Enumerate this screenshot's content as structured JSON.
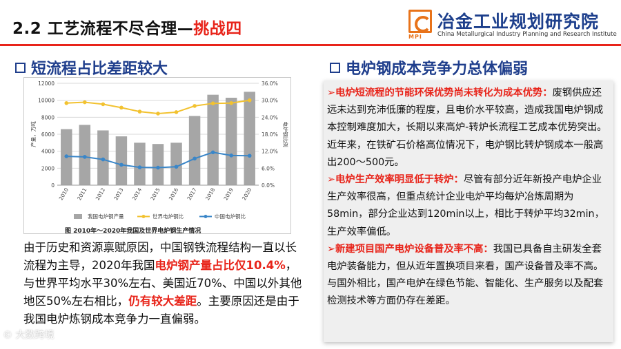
{
  "header": {
    "title_prefix": "2.2 工艺流程不尽合理—",
    "title_highlight": "挑战四",
    "logo_mpi": "MPI",
    "logo_cn": "冶金工业规划研究院",
    "logo_en": "China Metallurgical Industry Planning and Research Institute"
  },
  "left": {
    "heading": "短流程占比差距较大",
    "caption": "图  2010年～2020年我国及世界电炉钢生产情况",
    "para": [
      {
        "t": "由于历史和资源禀赋原因，中国钢铁流程结构一直以长流程为主导，2020年我国"
      },
      {
        "t": "电炉钢产量占比仅10.4%",
        "red": true
      },
      {
        "t": "，与世界平均水平30%左右、美国近70%、中国以外其他地区50%左右相比，"
      },
      {
        "t": "仍有较大差距",
        "red": true
      },
      {
        "t": "。主要原因还是由于我国电炉炼钢成本竞争力一直偏弱。"
      }
    ]
  },
  "right": {
    "heading": "电炉钢成本竞争力总体偏弱",
    "items": [
      {
        "arrow": "➢",
        "lead": "电炉短流程的节能环保优势尚未转化为成本优势：",
        "body": "废钢供应还远未达到充沛低廉的程度，且电价水平较高，造成我国电炉钢成本控制难度加大，长期以来高炉-转炉长流程工艺成本优势突出。近年来，在铁矿石价格高位情况下，电炉钢比转炉钢成本一般高出200～500元。"
      },
      {
        "arrow": "➢",
        "lead": "电炉生产效率明显低于转炉：",
        "body": "尽管有部分近年新投产电炉企业生产效率很高，但重点统计企业电炉平均每炉冶炼周期为58min，部分企业达到120min以上，相比于转炉平均32min，生产效率偏低。"
      },
      {
        "arrow": "➢",
        "lead": "新建项目国产电炉设备普及率不高：",
        "body": "我国已具备自主研发全套电炉装备能力，但从近年置换项目来看，国产设备普及率不高。与国外相比，国产电炉在绿色节能、智能化、生产服务以及配套检测技术等方面仍存在差距。"
      }
    ]
  },
  "chart_data": {
    "type": "bar",
    "categories": [
      "2010",
      "2011",
      "2012",
      "2013",
      "2014",
      "2015",
      "2016",
      "2017",
      "2018",
      "2019",
      "2020"
    ],
    "series": [
      {
        "name": "我国电炉钢产量",
        "kind": "bar",
        "axis": "left",
        "color": "#a6a6a6",
        "values": [
          6600,
          7100,
          6450,
          5750,
          5000,
          4850,
          5000,
          8150,
          10650,
          10300,
          11000
        ]
      },
      {
        "name": "世界电炉钢比",
        "kind": "line",
        "axis": "right",
        "color": "#f2c230",
        "values": [
          29.0,
          29.3,
          28.6,
          27.4,
          26.0,
          25.3,
          25.8,
          28.0,
          28.9,
          29.0,
          30.0
        ]
      },
      {
        "name": "中国电炉钢比",
        "kind": "line",
        "axis": "right",
        "color": "#3a86c8",
        "values": [
          10.2,
          10.0,
          9.1,
          7.2,
          6.3,
          6.2,
          6.5,
          9.4,
          11.6,
          10.5,
          10.4
        ]
      }
    ],
    "ylabel": "产量，万吨",
    "y2label": "电炉钢比例",
    "ylim": [
      0,
      12000
    ],
    "yticks": [
      "0",
      "2000",
      "4000",
      "6000",
      "8000",
      "10000",
      "12000"
    ],
    "y2lim": [
      0,
      36
    ],
    "y2ticks": [
      "0.0%",
      "6.0%",
      "12.0%",
      "18.0%",
      "24.0%",
      "30.0%",
      "36.0%"
    ],
    "grid": true,
    "legend": "bottom"
  },
  "watermark": "© 大数跨境"
}
